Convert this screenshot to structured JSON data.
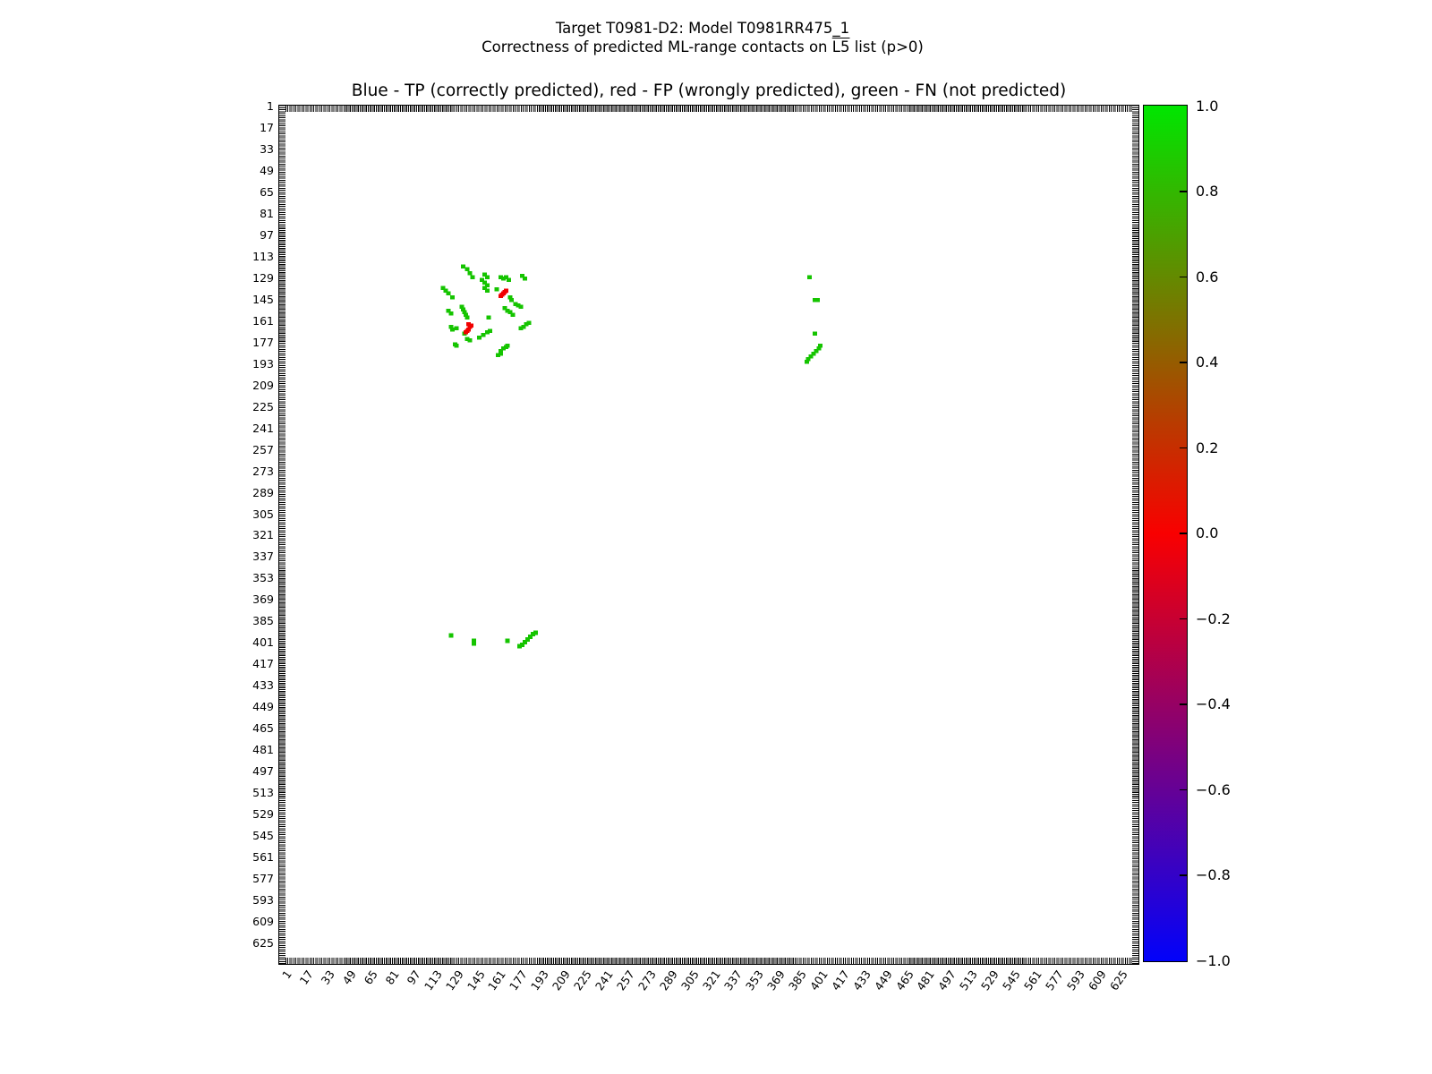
{
  "figure": {
    "suptitle_line1": "Target T0981-D2: Model T0981RR475_1",
    "suptitle_line2_prefix": "Correctness of predicted ML-range contacts on ",
    "suptitle_line2_overlined": "L5",
    "suptitle_line2_suffix": " list (p>0)",
    "axes_title": "Blue - TP (correctly predicted), red - FP (wrongly predicted), green - FN (not predicted)"
  },
  "chart_data": {
    "type": "scatter",
    "title": "Blue - TP (correctly predicted), red - FP (wrongly predicted), green - FN (not predicted)",
    "xlabel": "",
    "ylabel": "",
    "axis": {
      "min": 1,
      "max": 640,
      "tick_step": 16,
      "tick_labels": [
        1,
        17,
        33,
        49,
        65,
        81,
        97,
        113,
        129,
        145,
        161,
        177,
        193,
        209,
        225,
        241,
        257,
        273,
        289,
        305,
        321,
        337,
        353,
        369,
        385,
        401,
        417,
        433,
        449,
        465,
        481,
        497,
        513,
        529,
        545,
        561,
        577,
        593,
        609,
        625
      ],
      "y_inverted": true,
      "grid": false
    },
    "legend": [
      {
        "class": "TP",
        "meaning": "correctly predicted",
        "color_name": "blue"
      },
      {
        "class": "FP",
        "meaning": "wrongly predicted",
        "color_name": "red"
      },
      {
        "class": "FN",
        "meaning": "not predicted",
        "color_name": "green"
      }
    ],
    "series": [
      {
        "name": "FN (not predicted)",
        "color": "#15c400",
        "points": [
          [
            137,
            120
          ],
          [
            140,
            122
          ],
          [
            142,
            125
          ],
          [
            144,
            128
          ],
          [
            122,
            136
          ],
          [
            124,
            138
          ],
          [
            126,
            140
          ],
          [
            129,
            143
          ],
          [
            153,
            126
          ],
          [
            155,
            128
          ],
          [
            151,
            130
          ],
          [
            153,
            132
          ],
          [
            155,
            134
          ],
          [
            153,
            136
          ],
          [
            155,
            138
          ],
          [
            165,
            128
          ],
          [
            167,
            129
          ],
          [
            169,
            128
          ],
          [
            171,
            130
          ],
          [
            181,
            127
          ],
          [
            183,
            129
          ],
          [
            162,
            137
          ],
          [
            172,
            143
          ],
          [
            173,
            145
          ],
          [
            176,
            148
          ],
          [
            178,
            149
          ],
          [
            180,
            150
          ],
          [
            136,
            150
          ],
          [
            137,
            152
          ],
          [
            138,
            154
          ],
          [
            139,
            156
          ],
          [
            140,
            158
          ],
          [
            126,
            153
          ],
          [
            128,
            155
          ],
          [
            168,
            151
          ],
          [
            170,
            153
          ],
          [
            172,
            154
          ],
          [
            174,
            156
          ],
          [
            156,
            158
          ],
          [
            138,
            170
          ],
          [
            140,
            174
          ],
          [
            142,
            175
          ],
          [
            149,
            173
          ],
          [
            152,
            171
          ],
          [
            155,
            169
          ],
          [
            157,
            168
          ],
          [
            128,
            165
          ],
          [
            129,
            167
          ],
          [
            132,
            166
          ],
          [
            131,
            178
          ],
          [
            132,
            179
          ],
          [
            165,
            183
          ],
          [
            167,
            181
          ],
          [
            169,
            180
          ],
          [
            170,
            179
          ],
          [
            180,
            166
          ],
          [
            182,
            165
          ],
          [
            184,
            163
          ],
          [
            186,
            162
          ],
          [
            163,
            186
          ],
          [
            165,
            185
          ],
          [
            395,
            128
          ],
          [
            399,
            145
          ],
          [
            401,
            145
          ],
          [
            399,
            170
          ],
          [
            393,
            191
          ],
          [
            394,
            189
          ],
          [
            396,
            187
          ],
          [
            398,
            185
          ],
          [
            400,
            183
          ],
          [
            402,
            181
          ],
          [
            403,
            179
          ],
          [
            128,
            395
          ],
          [
            145,
            399
          ],
          [
            145,
            401
          ],
          [
            170,
            399
          ],
          [
            191,
            393
          ],
          [
            189,
            394
          ],
          [
            187,
            396
          ],
          [
            185,
            398
          ],
          [
            183,
            400
          ],
          [
            181,
            402
          ],
          [
            179,
            403
          ]
        ]
      },
      {
        "name": "FP (wrongly predicted)",
        "color": "#f10000",
        "points": [
          [
            165,
            142
          ],
          [
            166,
            141
          ],
          [
            167,
            140
          ],
          [
            168,
            139
          ],
          [
            169,
            138
          ],
          [
            139,
            169
          ],
          [
            140,
            168
          ],
          [
            141,
            167
          ],
          [
            142,
            165
          ],
          [
            143,
            164
          ],
          [
            141,
            163
          ]
        ]
      },
      {
        "name": "TP (correctly predicted)",
        "color": "#0000ff",
        "points": []
      }
    ],
    "colorbar": {
      "min": -1.0,
      "max": 1.0,
      "tick_values": [
        1.0,
        0.8,
        0.6,
        0.4,
        0.2,
        0.0,
        -0.2,
        -0.4,
        -0.6,
        -0.8,
        -1.0
      ],
      "tick_labels": [
        "1.0",
        "0.8",
        "0.6",
        "0.4",
        "0.2",
        "0.0",
        "−0.2",
        "−0.4",
        "−0.6",
        "−0.8",
        "−1.0"
      ],
      "gradient_top_to_bottom": [
        "#00e600",
        "#f90000",
        "#0202fa"
      ]
    }
  }
}
